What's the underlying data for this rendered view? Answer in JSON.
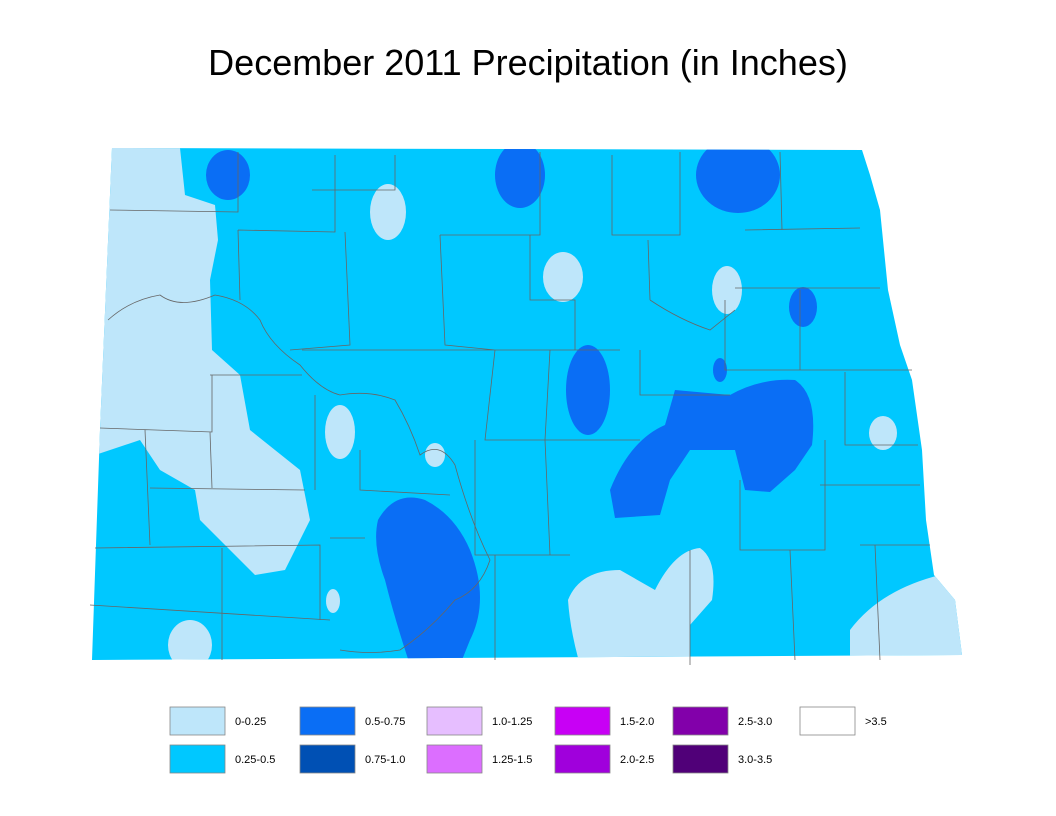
{
  "title": "December 2011 Precipitation (in Inches)",
  "legend": {
    "items": [
      {
        "label": "0-0.25",
        "color": "#bee6fa"
      },
      {
        "label": "0.25-0.5",
        "color": "#00c8ff"
      },
      {
        "label": "0.5-0.75",
        "color": "#0a6ef5"
      },
      {
        "label": "0.75-1.0",
        "color": "#0050b4"
      },
      {
        "label": "1.0-1.25",
        "color": "#e6beff"
      },
      {
        "label": "1.25-1.5",
        "color": "#dc6eff"
      },
      {
        "label": "1.5-2.0",
        "color": "#c800f5"
      },
      {
        "label": "2.0-2.5",
        "color": "#a000dc"
      },
      {
        "label": "2.5-3.0",
        "color": "#8200aa"
      },
      {
        "label": "3.0-3.5",
        "color": "#500078"
      },
      {
        "label": ">3.5",
        "color": "#ffffff"
      }
    ]
  }
}
